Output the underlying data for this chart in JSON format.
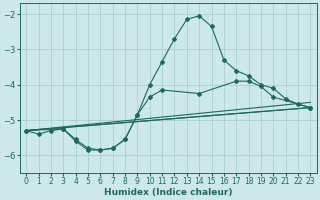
{
  "xlabel": "Humidex (Indice chaleur)",
  "bg_color": "#cce8e8",
  "line_color": "#1a6b5e",
  "grid_color": "#aacece",
  "xlim": [
    -0.5,
    23.5
  ],
  "ylim": [
    -6.5,
    -1.7
  ],
  "yticks": [
    -6,
    -5,
    -4,
    -3,
    -2
  ],
  "xticks": [
    0,
    1,
    2,
    3,
    4,
    5,
    6,
    7,
    8,
    9,
    10,
    11,
    12,
    13,
    14,
    15,
    16,
    17,
    18,
    19,
    20,
    21,
    22,
    23
  ],
  "lines": [
    {
      "x": [
        0,
        1,
        2,
        3,
        4,
        5,
        6,
        7,
        8,
        9,
        10,
        11,
        12,
        13,
        14,
        15,
        16,
        17,
        18,
        19,
        20,
        21,
        22,
        23
      ],
      "y": [
        -5.3,
        -5.4,
        -5.3,
        -5.25,
        -5.55,
        -5.8,
        -5.85,
        -5.8,
        -5.55,
        -4.85,
        -4.0,
        -3.35,
        -2.7,
        -2.15,
        -2.05,
        -2.35,
        -3.3,
        -3.6,
        -3.75,
        -4.0,
        -4.1,
        -4.4,
        -4.55,
        -4.65
      ],
      "markers": true
    },
    {
      "x": [
        0,
        3,
        4,
        5,
        6,
        7,
        8,
        9,
        10,
        11,
        14,
        17,
        18,
        19,
        20,
        23
      ],
      "y": [
        -5.3,
        -5.25,
        -5.6,
        -5.85,
        -5.85,
        -5.8,
        -5.55,
        -4.85,
        -4.35,
        -4.15,
        -4.25,
        -3.9,
        -3.9,
        -4.05,
        -4.35,
        -4.65
      ],
      "markers": true
    },
    {
      "x": [
        0,
        23
      ],
      "y": [
        -5.3,
        -4.5
      ],
      "markers": false
    },
    {
      "x": [
        0,
        23
      ],
      "y": [
        -5.3,
        -4.65
      ],
      "markers": false
    },
    {
      "x": [
        0,
        14,
        23
      ],
      "y": [
        -5.3,
        -4.9,
        -4.65
      ],
      "markers": false
    }
  ]
}
